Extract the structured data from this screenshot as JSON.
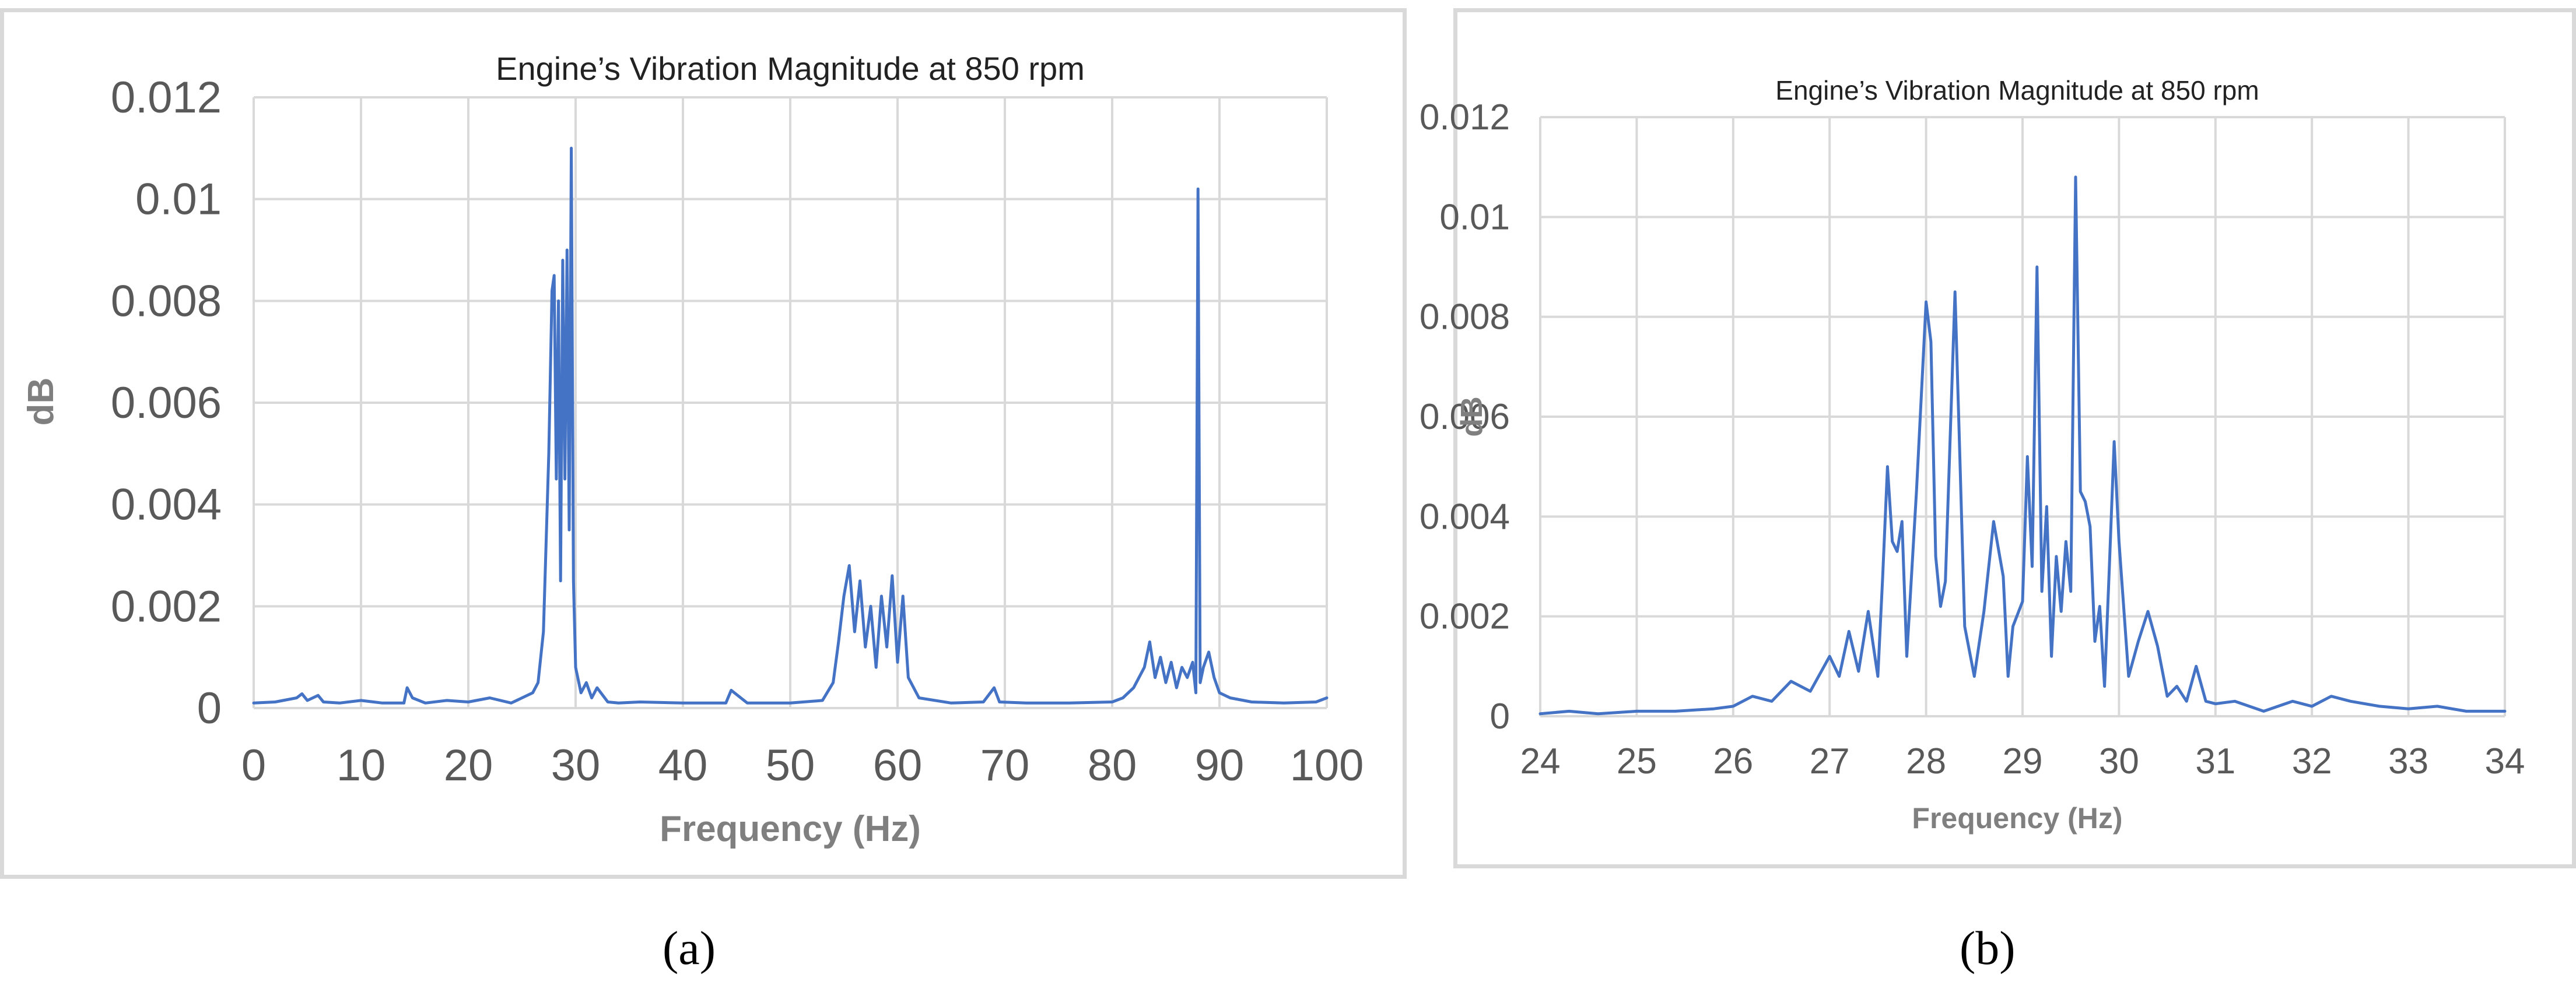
{
  "colors": {
    "series": "#4472c4",
    "grid": "#d9d9d9",
    "tick": "#595959",
    "axis_title": "#7f7f7f",
    "panel_border": "#d9d9d9"
  },
  "captions": {
    "a": "(a)",
    "b": "(b)"
  },
  "chart_data": [
    {
      "id": "a",
      "type": "line",
      "title": "Engine’s Vibration Magnitude at 850 rpm",
      "xlabel": "Frequency (Hz)",
      "ylabel": "dB",
      "xlim": [
        0,
        100
      ],
      "ylim": [
        0,
        0.012
      ],
      "xticks": [
        0,
        10,
        20,
        30,
        40,
        50,
        60,
        70,
        80,
        90,
        100
      ],
      "xtick_labels": [
        "0",
        "10",
        "20",
        "30",
        "40",
        "50",
        "60",
        "70",
        "80",
        "90",
        "100"
      ],
      "yticks": [
        0,
        0.002,
        0.004,
        0.006,
        0.008,
        0.01,
        0.012
      ],
      "ytick_labels": [
        "0",
        "0.002",
        "0.004",
        "0.006",
        "0.008",
        "0.01",
        "0.012"
      ],
      "grid": true,
      "legend": false,
      "series": [
        {
          "x": [
            0,
            2,
            4,
            4.5,
            5,
            6,
            6.5,
            8,
            10,
            12,
            14,
            14.3,
            14.8,
            16,
            18,
            20,
            22,
            24,
            26,
            26.5,
            27,
            27.5,
            27.8,
            28,
            28.2,
            28.4,
            28.6,
            28.8,
            29,
            29.2,
            29.4,
            29.6,
            29.8,
            30,
            30.5,
            31,
            31.5,
            32,
            33,
            34,
            36,
            40,
            44,
            44.5,
            46,
            50,
            53,
            54,
            54.5,
            55,
            55.5,
            56,
            56.5,
            57,
            57.5,
            58,
            58.5,
            59,
            59.5,
            60,
            60.5,
            61,
            62,
            65,
            68,
            69,
            69.5,
            72,
            76,
            80,
            81,
            82,
            83,
            83.5,
            84,
            84.5,
            85,
            85.5,
            86,
            86.5,
            87,
            87.5,
            87.8,
            88,
            88.2,
            88.5,
            89,
            89.5,
            90,
            91,
            93,
            96,
            99,
            100
          ],
          "y": [
            0.0001,
            0.00012,
            0.0002,
            0.00028,
            0.00015,
            0.00025,
            0.00012,
            0.0001,
            0.00015,
            0.0001,
            0.0001,
            0.0004,
            0.0002,
            0.0001,
            0.00015,
            0.00012,
            0.0002,
            0.0001,
            0.0003,
            0.0005,
            0.0015,
            0.005,
            0.0082,
            0.0085,
            0.0045,
            0.008,
            0.0025,
            0.0088,
            0.0045,
            0.009,
            0.0035,
            0.011,
            0.0025,
            0.0008,
            0.0003,
            0.0005,
            0.0002,
            0.0004,
            0.00012,
            0.0001,
            0.00012,
            0.0001,
            0.0001,
            0.00035,
            0.0001,
            0.0001,
            0.00015,
            0.0005,
            0.0013,
            0.0022,
            0.0028,
            0.0015,
            0.0025,
            0.0012,
            0.002,
            0.0008,
            0.0022,
            0.0012,
            0.0026,
            0.0009,
            0.0022,
            0.0006,
            0.0002,
            0.0001,
            0.00012,
            0.0004,
            0.00012,
            0.0001,
            0.0001,
            0.00012,
            0.0002,
            0.0004,
            0.0008,
            0.0013,
            0.0006,
            0.001,
            0.0005,
            0.0009,
            0.0004,
            0.0008,
            0.0006,
            0.0009,
            0.0003,
            0.0102,
            0.0005,
            0.0008,
            0.0011,
            0.0006,
            0.0003,
            0.0002,
            0.00012,
            0.0001,
            0.00012,
            0.0002
          ]
        }
      ]
    },
    {
      "id": "b",
      "type": "line",
      "title": "Engine’s Vibration Magnitude at 850 rpm",
      "xlabel": "Frequency (Hz)",
      "ylabel": "dB",
      "xlim": [
        24,
        34
      ],
      "ylim": [
        0,
        0.012
      ],
      "xticks": [
        24,
        25,
        26,
        27,
        28,
        29,
        30,
        31,
        32,
        33,
        34
      ],
      "xtick_labels": [
        "24",
        "25",
        "26",
        "27",
        "28",
        "29",
        "30",
        "31",
        "32",
        "33",
        "34"
      ],
      "yticks": [
        0,
        0.002,
        0.004,
        0.006,
        0.008,
        0.01,
        0.012
      ],
      "ytick_labels": [
        "0",
        "0.002",
        "0.004",
        "0.006",
        "0.008",
        "0.01",
        "0.012"
      ],
      "grid": true,
      "legend": false,
      "series": [
        {
          "x": [
            24,
            24.3,
            24.6,
            25,
            25.4,
            25.8,
            26,
            26.2,
            26.4,
            26.6,
            26.8,
            27,
            27.1,
            27.2,
            27.3,
            27.4,
            27.5,
            27.55,
            27.6,
            27.65,
            27.7,
            27.75,
            27.8,
            27.9,
            28,
            28.05,
            28.1,
            28.15,
            28.2,
            28.3,
            28.35,
            28.4,
            28.5,
            28.6,
            28.7,
            28.8,
            28.85,
            28.9,
            29,
            29.05,
            29.1,
            29.15,
            29.2,
            29.25,
            29.3,
            29.35,
            29.4,
            29.45,
            29.5,
            29.55,
            29.6,
            29.65,
            29.7,
            29.75,
            29.8,
            29.85,
            29.9,
            29.95,
            30,
            30.1,
            30.2,
            30.3,
            30.4,
            30.5,
            30.6,
            30.7,
            30.8,
            30.9,
            31,
            31.2,
            31.5,
            31.8,
            32,
            32.2,
            32.4,
            32.7,
            33,
            33.3,
            33.6,
            34
          ],
          "y": [
            5e-05,
            0.0001,
            5e-05,
            0.0001,
            0.0001,
            0.00015,
            0.0002,
            0.0004,
            0.0003,
            0.0007,
            0.0005,
            0.0012,
            0.0008,
            0.0017,
            0.0009,
            0.0021,
            0.0008,
            0.0028,
            0.005,
            0.0035,
            0.0033,
            0.0039,
            0.0012,
            0.0045,
            0.0083,
            0.0075,
            0.0032,
            0.0022,
            0.0027,
            0.0085,
            0.0052,
            0.0018,
            0.0008,
            0.0021,
            0.0039,
            0.0028,
            0.0008,
            0.0018,
            0.0023,
            0.0052,
            0.003,
            0.009,
            0.0025,
            0.0042,
            0.0012,
            0.0032,
            0.0021,
            0.0035,
            0.0025,
            0.0108,
            0.0045,
            0.0043,
            0.0038,
            0.0015,
            0.0022,
            0.0006,
            0.003,
            0.0055,
            0.0035,
            0.0008,
            0.0015,
            0.0021,
            0.0014,
            0.0004,
            0.0006,
            0.0003,
            0.001,
            0.0003,
            0.00025,
            0.0003,
            0.0001,
            0.0003,
            0.0002,
            0.0004,
            0.0003,
            0.0002,
            0.00015,
            0.0002,
            0.0001,
            0.0001
          ]
        }
      ]
    }
  ]
}
